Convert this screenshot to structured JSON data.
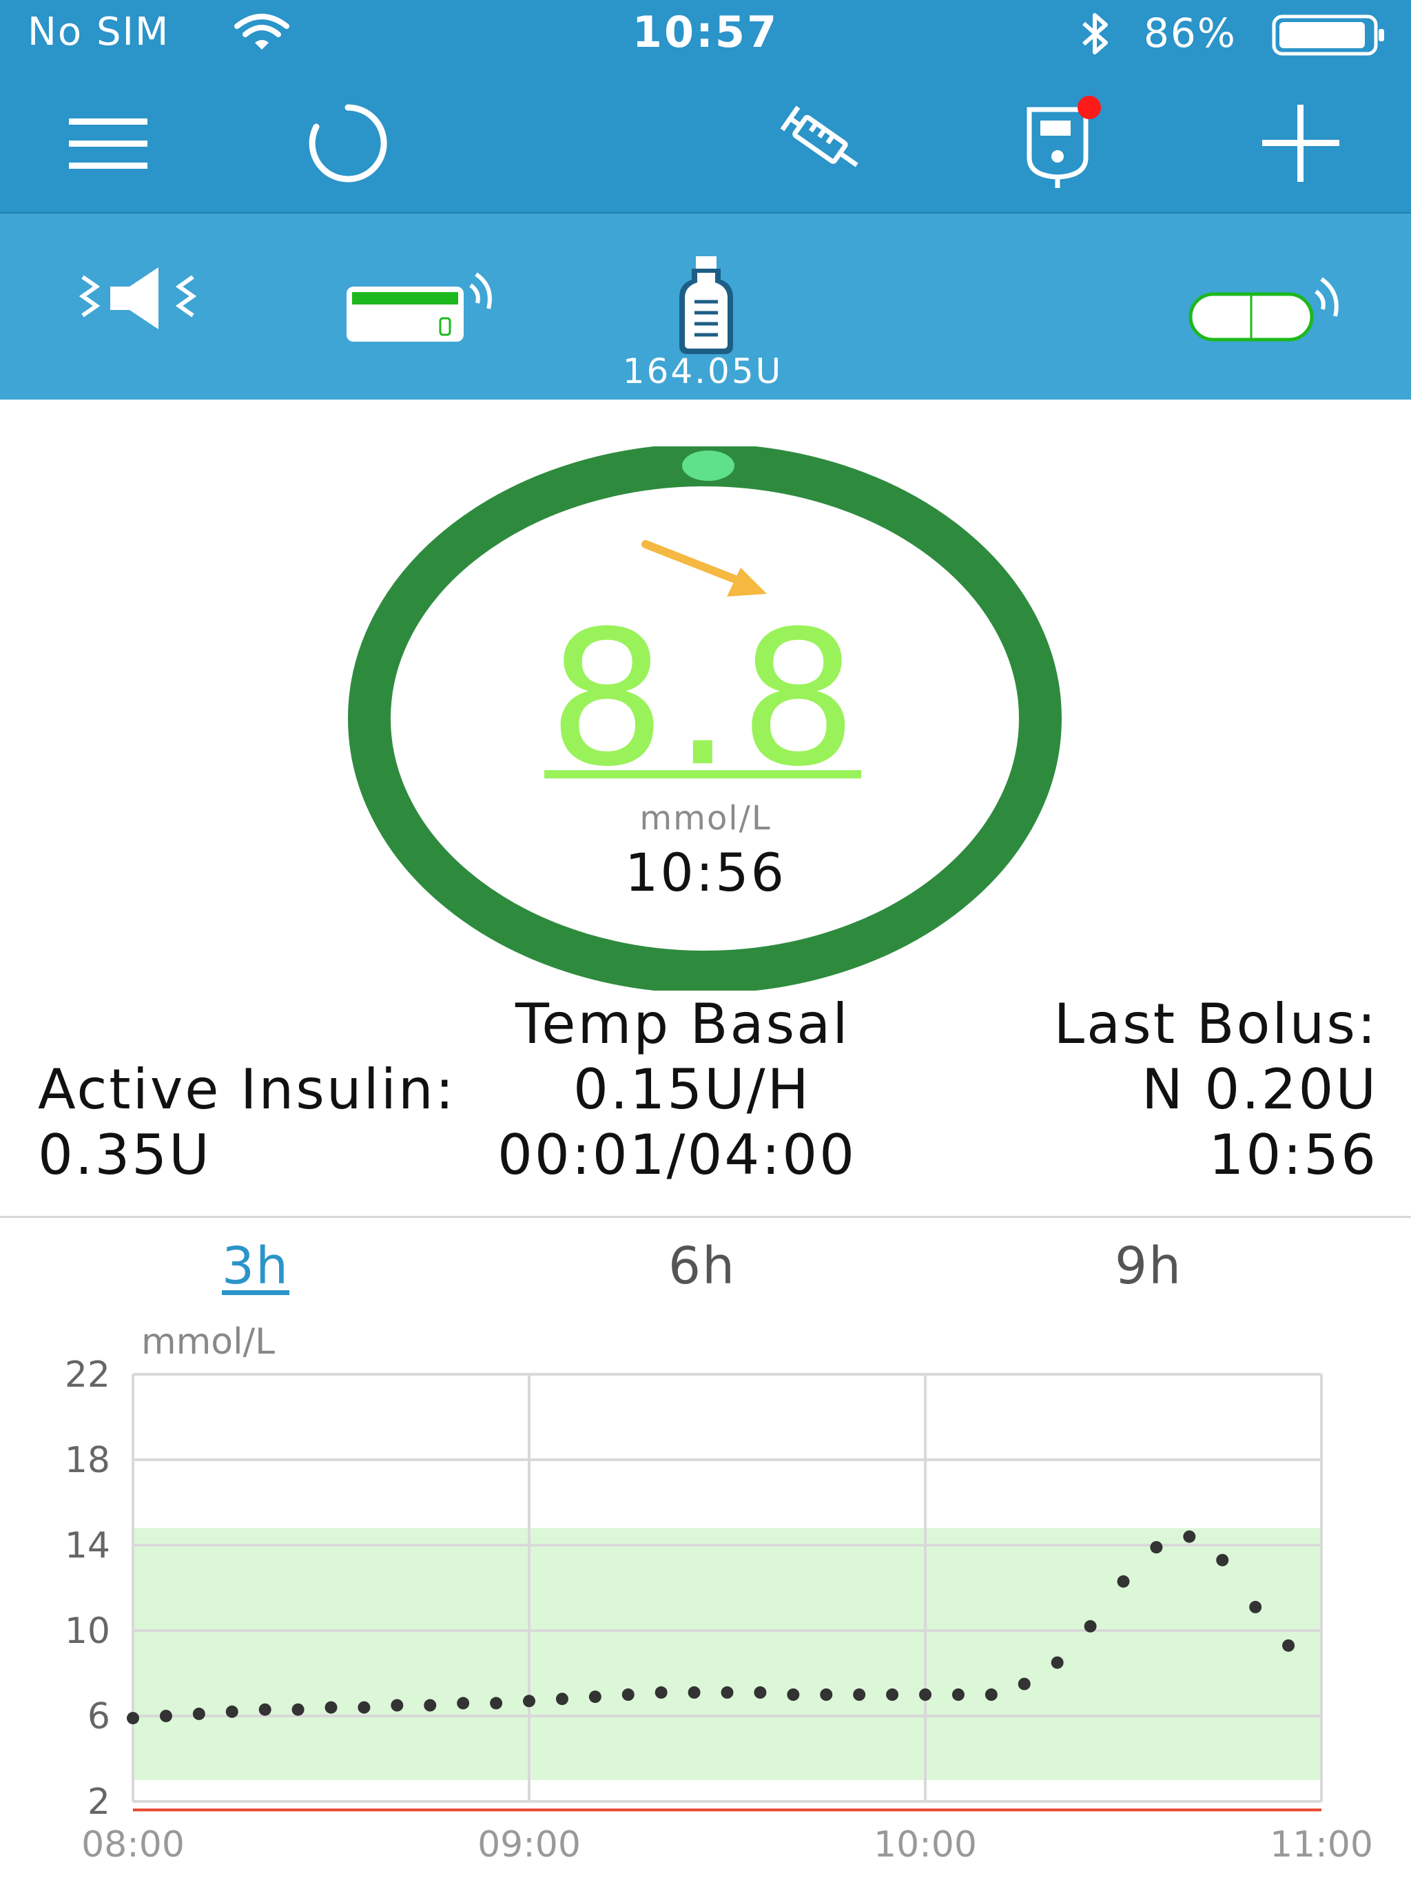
{
  "status_bar": {
    "carrier": "No SIM",
    "time": "10:57",
    "battery": "86%"
  },
  "toolbar": {
    "icons": [
      "menu-icon",
      "refresh-icon",
      "syringe-icon",
      "meter-icon",
      "plus-icon"
    ],
    "notification_dot_color": "#ff1a1a"
  },
  "devices": {
    "reservoir_units": "164.05U",
    "icons": [
      "speaker-icon",
      "pump-icon",
      "insulin-vial-icon",
      "sensor-icon"
    ]
  },
  "glucose": {
    "value": "8.8",
    "unit": "mmol/L",
    "time": "10:56",
    "trend": "down-right",
    "ring_color": "#2e8b3e",
    "value_color": "#9af25a",
    "trend_arrow_color": "#f5b841"
  },
  "stats": {
    "active_insulin_label": "Active Insulin:",
    "active_insulin_value": "0.35U",
    "temp_basal_label": "Temp Basal",
    "temp_basal_rate": "0.15U/H",
    "temp_basal_duration": "00:01/04:00",
    "last_bolus_label": "Last Bolus:",
    "last_bolus_amount": "N 0.20U",
    "last_bolus_time": "10:56"
  },
  "tabs": [
    {
      "label": "3h",
      "active": true
    },
    {
      "label": "6h",
      "active": false
    },
    {
      "label": "9h",
      "active": false
    }
  ],
  "chart_data": {
    "type": "scatter",
    "ylabel": "mmol/L",
    "x_ticks": [
      "08:00",
      "09:00",
      "10:00",
      "11:00"
    ],
    "y_ticks": [
      2,
      6,
      10,
      14,
      18,
      22
    ],
    "ylim": [
      2,
      22
    ],
    "xlim": [
      "08:00",
      "11:00"
    ],
    "target_range": [
      3.0,
      14.8
    ],
    "low_threshold": 1.6,
    "grid": true,
    "colors": {
      "points": "#333333",
      "target_band": "#dcf7d8",
      "low_line": "#e8452c",
      "grid": "#d9d9d9"
    },
    "x": [
      "08:00",
      "08:05",
      "08:10",
      "08:15",
      "08:20",
      "08:25",
      "08:30",
      "08:35",
      "08:40",
      "08:45",
      "08:50",
      "08:55",
      "09:00",
      "09:05",
      "09:10",
      "09:15",
      "09:20",
      "09:25",
      "09:30",
      "09:35",
      "09:40",
      "09:45",
      "09:50",
      "09:55",
      "10:00",
      "10:05",
      "10:10",
      "10:15",
      "10:20",
      "10:25",
      "10:30",
      "10:35",
      "10:40",
      "10:45",
      "10:50",
      "10:55"
    ],
    "y": [
      5.9,
      6.0,
      6.1,
      6.2,
      6.3,
      6.3,
      6.4,
      6.4,
      6.5,
      6.5,
      6.6,
      6.6,
      6.7,
      6.8,
      6.9,
      7.0,
      7.1,
      7.1,
      7.1,
      7.1,
      7.0,
      7.0,
      7.0,
      7.0,
      7.0,
      7.0,
      7.0,
      7.5,
      8.5,
      10.2,
      12.3,
      13.9,
      14.4,
      13.3,
      11.1,
      9.3
    ]
  }
}
